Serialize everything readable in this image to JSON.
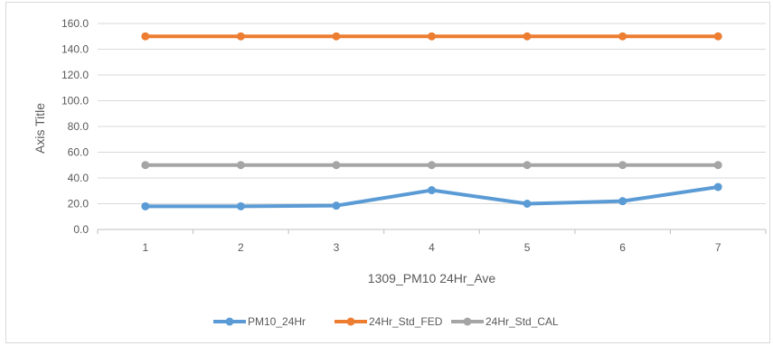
{
  "chart_data": {
    "type": "line",
    "xlabel": "1309_PM10 24Hr_Ave",
    "ylabel": "Axis Title",
    "categories": [
      "1",
      "2",
      "3",
      "4",
      "5",
      "6",
      "7"
    ],
    "ylim": [
      0,
      160
    ],
    "yticks": [
      "0.0",
      "20.0",
      "40.0",
      "60.0",
      "80.0",
      "100.0",
      "120.0",
      "140.0",
      "160.0"
    ],
    "grid": true,
    "legend_position": "bottom",
    "series": [
      {
        "name": "PM10_24Hr",
        "color": "#5b9bd5",
        "values": [
          18,
          18,
          18.5,
          30.5,
          20,
          22,
          33
        ]
      },
      {
        "name": "24Hr_Std_FED",
        "color": "#ed7d31",
        "values": [
          150,
          150,
          150,
          150,
          150,
          150,
          150
        ]
      },
      {
        "name": "24Hr_Std_CAL",
        "color": "#a5a5a5",
        "values": [
          50,
          50,
          50,
          50,
          50,
          50,
          50
        ]
      }
    ]
  }
}
